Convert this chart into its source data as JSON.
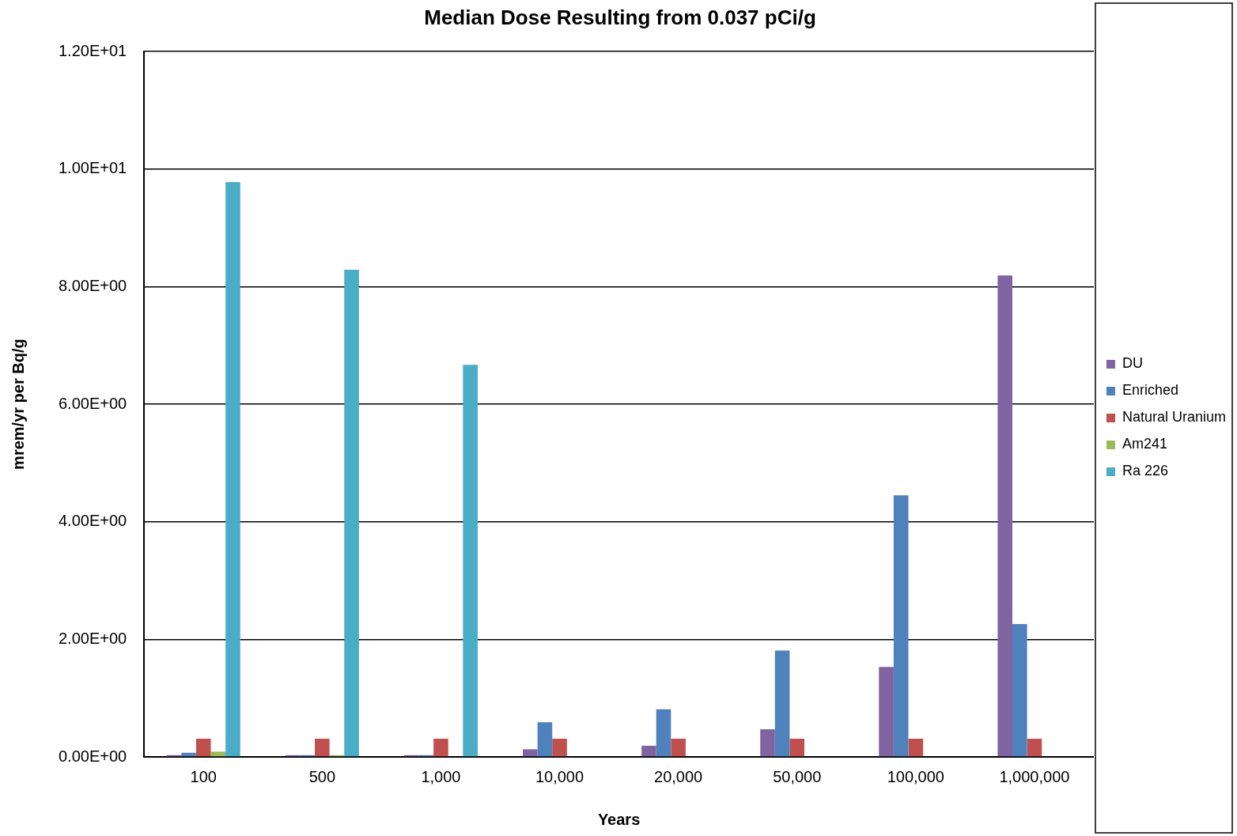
{
  "chart_data": {
    "type": "bar",
    "title": "Median Dose Resulting from 0.037 pCi/g",
    "xlabel": "Years",
    "ylabel": "mrem/yr per Bq/g",
    "categories": [
      "100",
      "500",
      "1,000",
      "10,000",
      "20,000",
      "50,000",
      "100,000",
      "1,000,000"
    ],
    "series": [
      {
        "name": "DU",
        "color": "#8064a2",
        "values": [
          0.03,
          0.03,
          0.03,
          0.13,
          0.19,
          0.47,
          1.53,
          8.19
        ]
      },
      {
        "name": "Enriched",
        "color": "#4f81bd",
        "values": [
          0.07,
          0.03,
          0.03,
          0.59,
          0.81,
          1.81,
          4.45,
          2.26
        ]
      },
      {
        "name": "Natural Uranium",
        "color": "#c0504d",
        "values": [
          0.31,
          0.31,
          0.31,
          0.31,
          0.31,
          0.31,
          0.31,
          0.31
        ]
      },
      {
        "name": "Am241",
        "color": "#9bbb59",
        "values": [
          0.09,
          0.03,
          0,
          0,
          0,
          0,
          0,
          0
        ]
      },
      {
        "name": "Ra 226",
        "color": "#4bacc6",
        "values": [
          9.78,
          8.29,
          6.67,
          0,
          0,
          0,
          0,
          0
        ]
      }
    ],
    "ylim": [
      0,
      12
    ],
    "yticks": [
      {
        "value": 0,
        "label": "0.00E+00"
      },
      {
        "value": 2,
        "label": "2.00E+00"
      },
      {
        "value": 4,
        "label": "4.00E+00"
      },
      {
        "value": 6,
        "label": "6.00E+00"
      },
      {
        "value": 8,
        "label": "8.00E+00"
      },
      {
        "value": 10,
        "label": "1.00E+01"
      },
      {
        "value": 12,
        "label": "1.20E+01"
      }
    ],
    "grid": "y",
    "legend": "right"
  }
}
